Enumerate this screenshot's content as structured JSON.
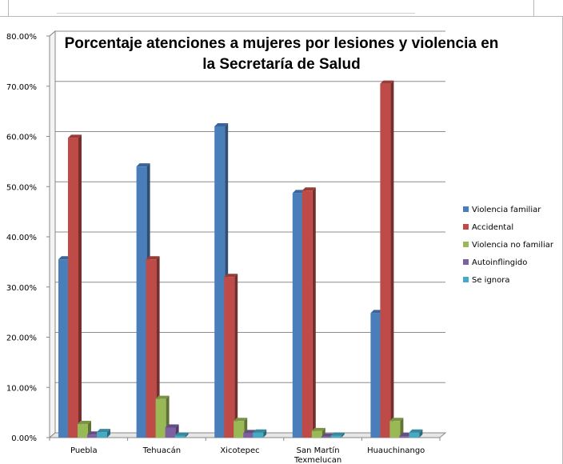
{
  "chart_data": {
    "type": "bar",
    "title_lines": [
      "Porcentaje atenciones a mujeres por lesiones y violencia en",
      "la Secretaría de Salud"
    ],
    "categories": [
      "Puebla",
      "Tehuacán",
      "Xicotepec",
      "San Martín Texmelucan",
      "Huauchinango"
    ],
    "category_lines": [
      [
        "Puebla"
      ],
      [
        "Tehuacán"
      ],
      [
        "Xicotepec"
      ],
      [
        "San Martín",
        "Texmelucan"
      ],
      [
        "Huauchinango"
      ]
    ],
    "series": [
      {
        "name": "Violencia familiar",
        "color": "#4a7ebb",
        "values": [
          35.5,
          54.0,
          62.0,
          48.7,
          24.8
        ]
      },
      {
        "name": "Accidental",
        "color": "#be4b48",
        "values": [
          59.7,
          35.5,
          32.0,
          49.2,
          70.5
        ]
      },
      {
        "name": "Violencia no familiar",
        "color": "#98b954",
        "values": [
          2.7,
          7.7,
          3.3,
          1.3,
          3.3
        ]
      },
      {
        "name": "Autoinflingido",
        "color": "#7d60a0",
        "values": [
          0.6,
          2.0,
          0.9,
          0.2,
          0.3
        ]
      },
      {
        "name": "Se ignora",
        "color": "#46aac5",
        "values": [
          1.1,
          0.4,
          1.0,
          0.4,
          1.0
        ]
      }
    ],
    "yticks": [
      "0.00%",
      "10.00%",
      "20.00%",
      "30.00%",
      "40.00%",
      "50.00%",
      "60.00%",
      "70.00%",
      "80.00%"
    ],
    "ylim": [
      0,
      80
    ],
    "grid": true,
    "legend_position": "right",
    "xlabel": "",
    "ylabel": ""
  }
}
